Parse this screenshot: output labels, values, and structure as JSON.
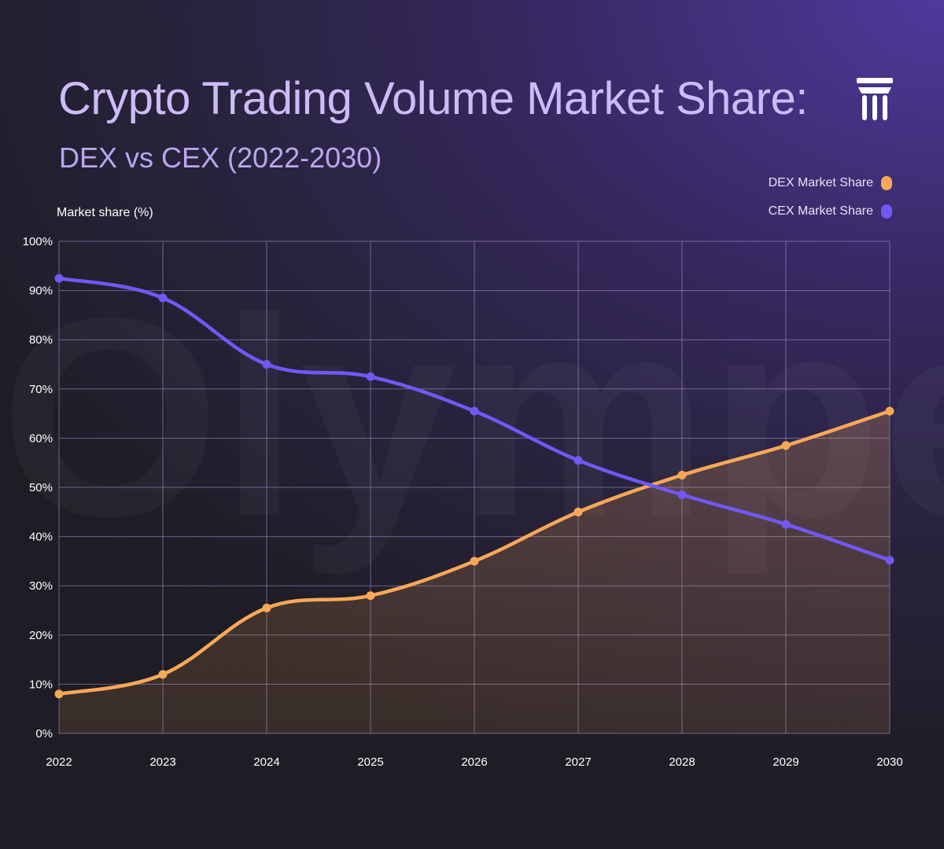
{
  "header": {
    "title": "Crypto Trading Volume Market Share:",
    "subtitle": "DEX vs CEX (2022-2030)",
    "watermark": "Olympex"
  },
  "colors": {
    "dex": "#f8a856",
    "cex": "#7258f5",
    "grid": "#a99cd6",
    "title": "#cbbcf7",
    "text": "#ffffff"
  },
  "icons": {
    "logo": "pillar-logo-icon"
  },
  "chart_data": {
    "type": "area",
    "title": "Crypto Trading Volume Market Share: DEX vs CEX (2022-2030)",
    "xlabel": "",
    "ylabel": "Market share (%)",
    "x": [
      "2022",
      "2023",
      "2024",
      "2025",
      "2026",
      "2027",
      "2028",
      "2029",
      "2030"
    ],
    "ylim": [
      0,
      100
    ],
    "yticks": [
      "0%",
      "10%",
      "20%",
      "30%",
      "40%",
      "50%",
      "60%",
      "70%",
      "80%",
      "90%",
      "100%"
    ],
    "grid": true,
    "legend_position": "top-right",
    "series": [
      {
        "name": "DEX Market Share",
        "values": [
          8,
          12,
          25.5,
          28,
          35,
          45,
          52.5,
          58.5,
          65.5
        ],
        "filled": true
      },
      {
        "name": "CEX Market Share",
        "values": [
          92.5,
          88.5,
          75,
          72.5,
          65.5,
          55.5,
          48.5,
          42.5,
          35.2
        ],
        "filled": false
      }
    ]
  }
}
